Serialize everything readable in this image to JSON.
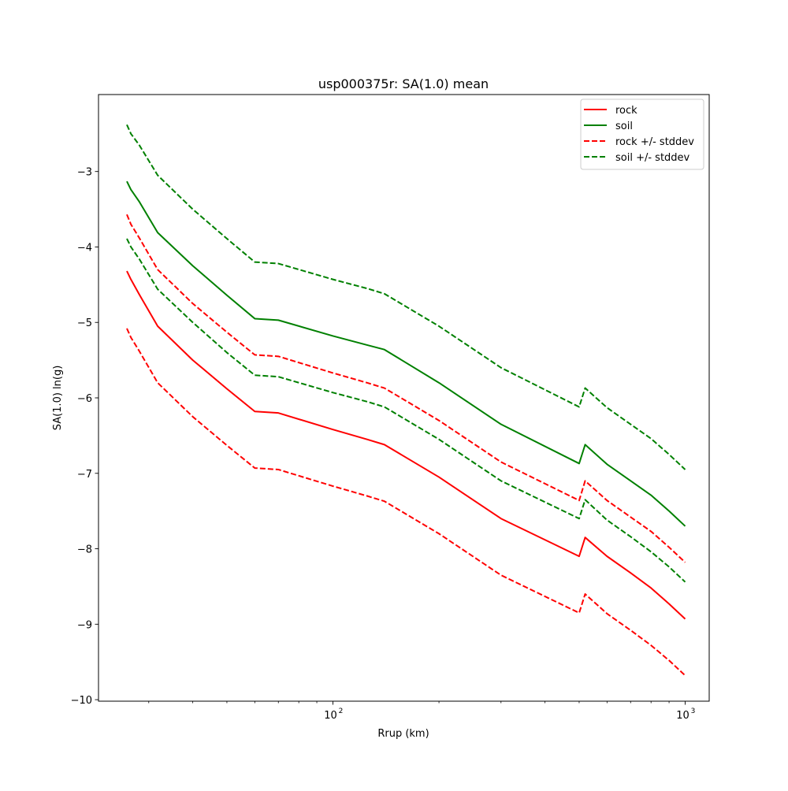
{
  "chart_data": {
    "type": "line",
    "title": "usp000375r: SA(1.0) mean",
    "xlabel": "Rrup (km)",
    "ylabel": "SA(1.0) ln(g)",
    "xscale": "log",
    "xlim": [
      21.6,
      1170
    ],
    "ylim": [
      -10.02,
      -1.98
    ],
    "x_major_ticks": [
      {
        "value": 100,
        "base": "10",
        "exp": "2"
      },
      {
        "value": 1000,
        "base": "10",
        "exp": "3"
      }
    ],
    "x_minor_ticks": [
      30,
      40,
      50,
      60,
      70,
      80,
      90,
      200,
      300,
      400,
      500,
      600,
      700,
      800,
      900
    ],
    "y_ticks": [
      {
        "value": -10,
        "label": "−10"
      },
      {
        "value": -9,
        "label": "−9"
      },
      {
        "value": -8,
        "label": "−8"
      },
      {
        "value": -7,
        "label": "−7"
      },
      {
        "value": -6,
        "label": "−6"
      },
      {
        "value": -5,
        "label": "−5"
      },
      {
        "value": -4,
        "label": "−4"
      },
      {
        "value": -3,
        "label": "−3"
      }
    ],
    "grid": false,
    "legend_position": "top-right",
    "series": [
      {
        "name": "rock",
        "color": "#ff0000",
        "dash": "solid",
        "x": [
          26,
          26.7,
          28.2,
          31.8,
          40,
          50,
          60,
          70,
          100,
          125,
          140,
          200,
          300,
          500,
          520,
          600,
          700,
          800,
          900,
          1000
        ],
        "y": [
          -4.32,
          -4.43,
          -4.63,
          -5.05,
          -5.5,
          -5.88,
          -6.18,
          -6.2,
          -6.42,
          -6.55,
          -6.62,
          -7.05,
          -7.6,
          -8.1,
          -7.85,
          -8.1,
          -8.32,
          -8.52,
          -8.73,
          -8.93
        ]
      },
      {
        "name": "soil",
        "color": "#008000",
        "dash": "solid",
        "x": [
          26,
          26.7,
          28.2,
          31.8,
          40,
          50,
          60,
          70,
          100,
          125,
          140,
          200,
          300,
          500,
          520,
          600,
          700,
          800,
          900,
          1000
        ],
        "y": [
          -3.13,
          -3.24,
          -3.4,
          -3.81,
          -4.25,
          -4.64,
          -4.95,
          -4.97,
          -5.18,
          -5.3,
          -5.36,
          -5.8,
          -6.35,
          -6.87,
          -6.62,
          -6.88,
          -7.1,
          -7.29,
          -7.5,
          -7.7
        ]
      },
      {
        "name": "rock +/- stddev",
        "color": "#ff0000",
        "dash": "dashed",
        "x": [
          26,
          26.7,
          28.2,
          31.8,
          40,
          50,
          60,
          70,
          100,
          125,
          140,
          200,
          300,
          500,
          520,
          600,
          700,
          800,
          900,
          1000
        ],
        "y": [
          -3.57,
          -3.7,
          -3.88,
          -4.3,
          -4.75,
          -5.13,
          -5.43,
          -5.45,
          -5.67,
          -5.8,
          -5.87,
          -6.3,
          -6.85,
          -7.36,
          -7.1,
          -7.36,
          -7.58,
          -7.77,
          -7.98,
          -8.18
        ]
      },
      {
        "name": "rock +/- stddev",
        "legend": false,
        "color": "#ff0000",
        "dash": "dashed",
        "x": [
          26,
          26.7,
          28.2,
          31.8,
          40,
          50,
          60,
          70,
          100,
          125,
          140,
          200,
          300,
          500,
          520,
          600,
          700,
          800,
          900,
          1000
        ],
        "y": [
          -5.08,
          -5.2,
          -5.38,
          -5.8,
          -6.25,
          -6.63,
          -6.93,
          -6.95,
          -7.17,
          -7.3,
          -7.37,
          -7.8,
          -8.35,
          -8.85,
          -8.6,
          -8.86,
          -9.08,
          -9.28,
          -9.48,
          -9.68
        ]
      },
      {
        "name": "soil +/- stddev",
        "color": "#008000",
        "dash": "dashed",
        "x": [
          26,
          26.7,
          28.2,
          31.8,
          40,
          50,
          60,
          70,
          100,
          125,
          140,
          200,
          300,
          500,
          520,
          600,
          700,
          800,
          900,
          1000
        ],
        "y": [
          -2.38,
          -2.5,
          -2.65,
          -3.05,
          -3.5,
          -3.89,
          -4.2,
          -4.22,
          -4.43,
          -4.55,
          -4.62,
          -5.05,
          -5.6,
          -6.12,
          -5.87,
          -6.13,
          -6.35,
          -6.54,
          -6.75,
          -6.95
        ]
      },
      {
        "name": "soil +/- stddev",
        "legend": false,
        "color": "#008000",
        "dash": "dashed",
        "x": [
          26,
          26.7,
          28.2,
          31.8,
          40,
          50,
          60,
          70,
          100,
          125,
          140,
          200,
          300,
          500,
          520,
          600,
          700,
          800,
          900,
          1000
        ],
        "y": [
          -3.89,
          -4.0,
          -4.16,
          -4.56,
          -5.0,
          -5.4,
          -5.7,
          -5.72,
          -5.93,
          -6.05,
          -6.12,
          -6.55,
          -7.1,
          -7.6,
          -7.35,
          -7.62,
          -7.84,
          -8.04,
          -8.24,
          -8.44
        ]
      }
    ]
  }
}
